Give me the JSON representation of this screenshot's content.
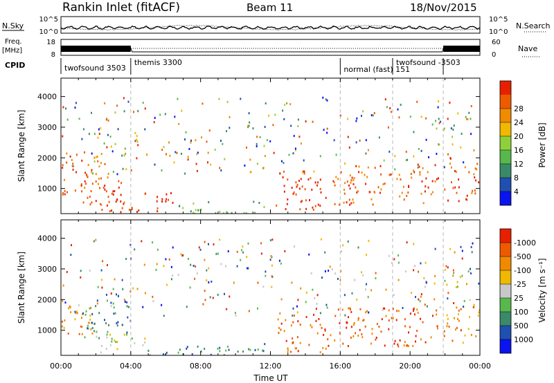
{
  "header": {
    "station": "Rankin Inlet (fitACF)",
    "beam": "Beam 11",
    "date": "18/Nov/2015"
  },
  "params": {
    "nsky_label": "N.Sky",
    "nsky_ticks": [
      "10^5",
      "10^0"
    ],
    "nsearch_label": "N.Search",
    "nsearch_ticks": [
      "10^5",
      "10^0"
    ],
    "freq_label": "Freq.",
    "freq_unit": "[MHz]",
    "freq_ticks": [
      "18",
      "8"
    ],
    "nave_label": "Nave",
    "nave_ticks": [
      "60",
      "0"
    ],
    "cpid_label": "CPID",
    "cpid_segments": [
      {
        "label": "twofsound 3503",
        "start": 0.0
      },
      {
        "label": "themis 3300",
        "start": 4.0
      },
      {
        "label": "normal (fast) 151",
        "start": 16.0
      },
      {
        "label": "twofsound -3503",
        "start": 19.0
      },
      {
        "label": "",
        "start": 21.9
      }
    ]
  },
  "chart_data": [
    {
      "type": "heatmap",
      "name": "power-panel",
      "ylabel": "Slant Range [km]",
      "xlabel": "",
      "xlim": [
        0,
        24
      ],
      "ylim": [
        180,
        4600
      ],
      "yticks": [
        1000,
        2000,
        3000,
        4000
      ],
      "colorbar_label": "Power [dB]",
      "colorbar_ticks": [
        "4",
        "8",
        "12",
        "16",
        "20",
        "24",
        "28"
      ],
      "colorbar_colors": [
        "#0a14ee",
        "#1f4fb0",
        "#3a8a6a",
        "#58b84c",
        "#8fd03a",
        "#f0b800",
        "#f08a00",
        "#ee5a00",
        "#e82000"
      ],
      "regions": [
        {
          "t0": 0.0,
          "t1": 2.5,
          "r0": 800,
          "r1": 2200,
          "level": 7
        },
        {
          "t0": 1.2,
          "t1": 3.6,
          "r0": 500,
          "r1": 1600,
          "level": 7
        },
        {
          "t0": 2.2,
          "t1": 6.5,
          "r0": 250,
          "r1": 900,
          "level": 8
        },
        {
          "t0": 6.5,
          "t1": 11.8,
          "r0": 200,
          "r1": 600,
          "level": 3
        },
        {
          "t0": 12.3,
          "t1": 15.5,
          "r0": 300,
          "r1": 1600,
          "level": 8
        },
        {
          "t0": 15.5,
          "t1": 21.6,
          "r0": 500,
          "r1": 1800,
          "level": 7
        },
        {
          "t0": 21.9,
          "t1": 24.0,
          "r0": 600,
          "r1": 1900,
          "level": 7
        }
      ]
    },
    {
      "type": "heatmap",
      "name": "velocity-panel",
      "ylabel": "Slant Range [km]",
      "xlabel": "Time UT",
      "xlim": [
        0,
        24
      ],
      "ylim": [
        180,
        4600
      ],
      "xticks": [
        "00:00",
        "04:00",
        "08:00",
        "12:00",
        "16:00",
        "20:00",
        "00:00"
      ],
      "yticks": [
        1000,
        2000,
        3000,
        4000
      ],
      "colorbar_label": "Velocity [m s⁻¹]",
      "colorbar_ticks": [
        "1000",
        "500",
        "100",
        "25",
        "-25",
        "-100",
        "-500",
        "-1000"
      ],
      "colorbar_colors": [
        "#0a14ee",
        "#1f4fb0",
        "#3a8a6a",
        "#58b84c",
        "#c8c8c8",
        "#f0b800",
        "#f08a00",
        "#ee5a00",
        "#e82000"
      ],
      "regions": [
        {
          "t0": 0.0,
          "t1": 1.8,
          "r0": 900,
          "r1": 2200,
          "level": 6
        },
        {
          "t0": 1.2,
          "t1": 4.0,
          "r0": 700,
          "r1": 2000,
          "level": 2
        },
        {
          "t0": 2.0,
          "t1": 4.8,
          "r0": 300,
          "r1": 900,
          "level": 4
        },
        {
          "t0": 4.8,
          "t1": 11.8,
          "r0": 200,
          "r1": 600,
          "level": 2
        },
        {
          "t0": 12.3,
          "t1": 15.5,
          "r0": 300,
          "r1": 1600,
          "level": 7
        },
        {
          "t0": 15.5,
          "t1": 21.6,
          "r0": 500,
          "r1": 1800,
          "level": 7
        },
        {
          "t0": 21.9,
          "t1": 24.0,
          "r0": 600,
          "r1": 1900,
          "level": 6
        }
      ]
    }
  ]
}
